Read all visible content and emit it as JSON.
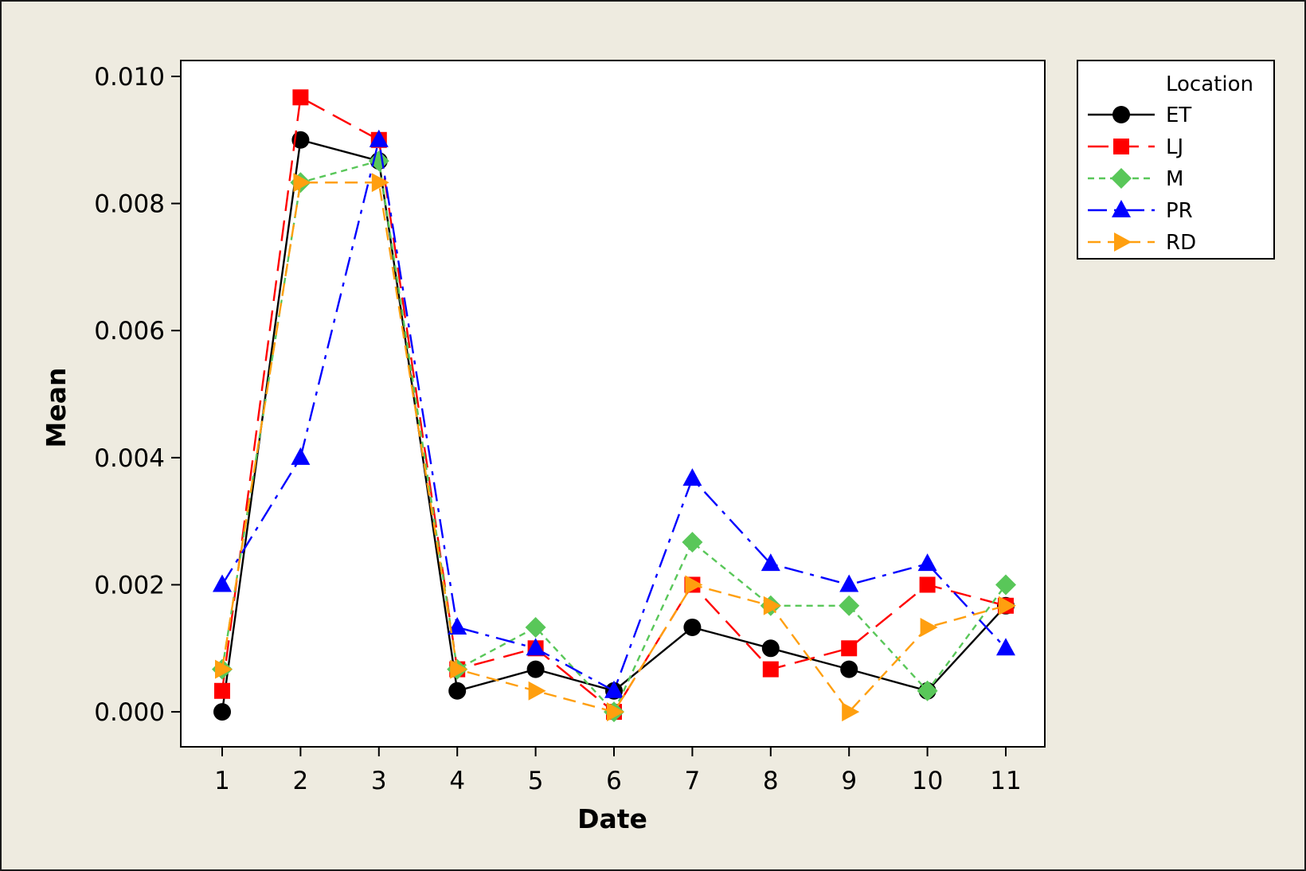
{
  "chart_data": {
    "type": "line",
    "xlabel": "Date",
    "ylabel": "Mean",
    "categories": [
      "1",
      "2",
      "3",
      "4",
      "5",
      "6",
      "7",
      "8",
      "9",
      "10",
      "11"
    ],
    "ylim": [
      -0.00055,
      0.01025
    ],
    "yticks": [
      "0.000",
      "0.002",
      "0.004",
      "0.006",
      "0.008",
      "0.010"
    ],
    "ytick_values": [
      0,
      0.002,
      0.004,
      0.006,
      0.008,
      0.01
    ],
    "legend": {
      "title": "Location",
      "placement": "right, outside plot"
    },
    "series": [
      {
        "name": "ET",
        "color": "#000000",
        "marker": "circle",
        "dash": "solid",
        "values": [
          0.0,
          0.009,
          0.00867,
          0.00033,
          0.00067,
          0.00033,
          0.00133,
          0.001,
          0.00067,
          0.00033,
          0.00167
        ]
      },
      {
        "name": "LJ",
        "color": "#ff0000",
        "marker": "square",
        "dash": "long-dash",
        "values": [
          0.00033,
          0.00967,
          0.009,
          0.00067,
          0.001,
          0.0,
          0.002,
          0.00067,
          0.001,
          0.002,
          0.00167
        ]
      },
      {
        "name": "M",
        "color": "#59c759",
        "marker": "diamond",
        "dash": "short-dash",
        "values": [
          0.00067,
          0.00833,
          0.00867,
          0.00067,
          0.00133,
          0.0,
          0.00267,
          0.00167,
          0.00167,
          0.00033,
          0.002
        ]
      },
      {
        "name": "PR",
        "color": "#0000ff",
        "marker": "triangle-up",
        "dash": "dash-dot",
        "values": [
          0.002,
          0.004,
          0.009,
          0.00133,
          0.001,
          0.00033,
          0.00367,
          0.00233,
          0.002,
          0.00233,
          0.001
        ]
      },
      {
        "name": "RD",
        "color": "#ff9f0f",
        "marker": "triangle-right",
        "dash": "medium-dash",
        "values": [
          0.00067,
          0.00833,
          0.00833,
          0.00067,
          0.00033,
          0.0,
          0.002,
          0.00167,
          0.0,
          0.00133,
          0.00167
        ]
      }
    ],
    "grid": false
  }
}
